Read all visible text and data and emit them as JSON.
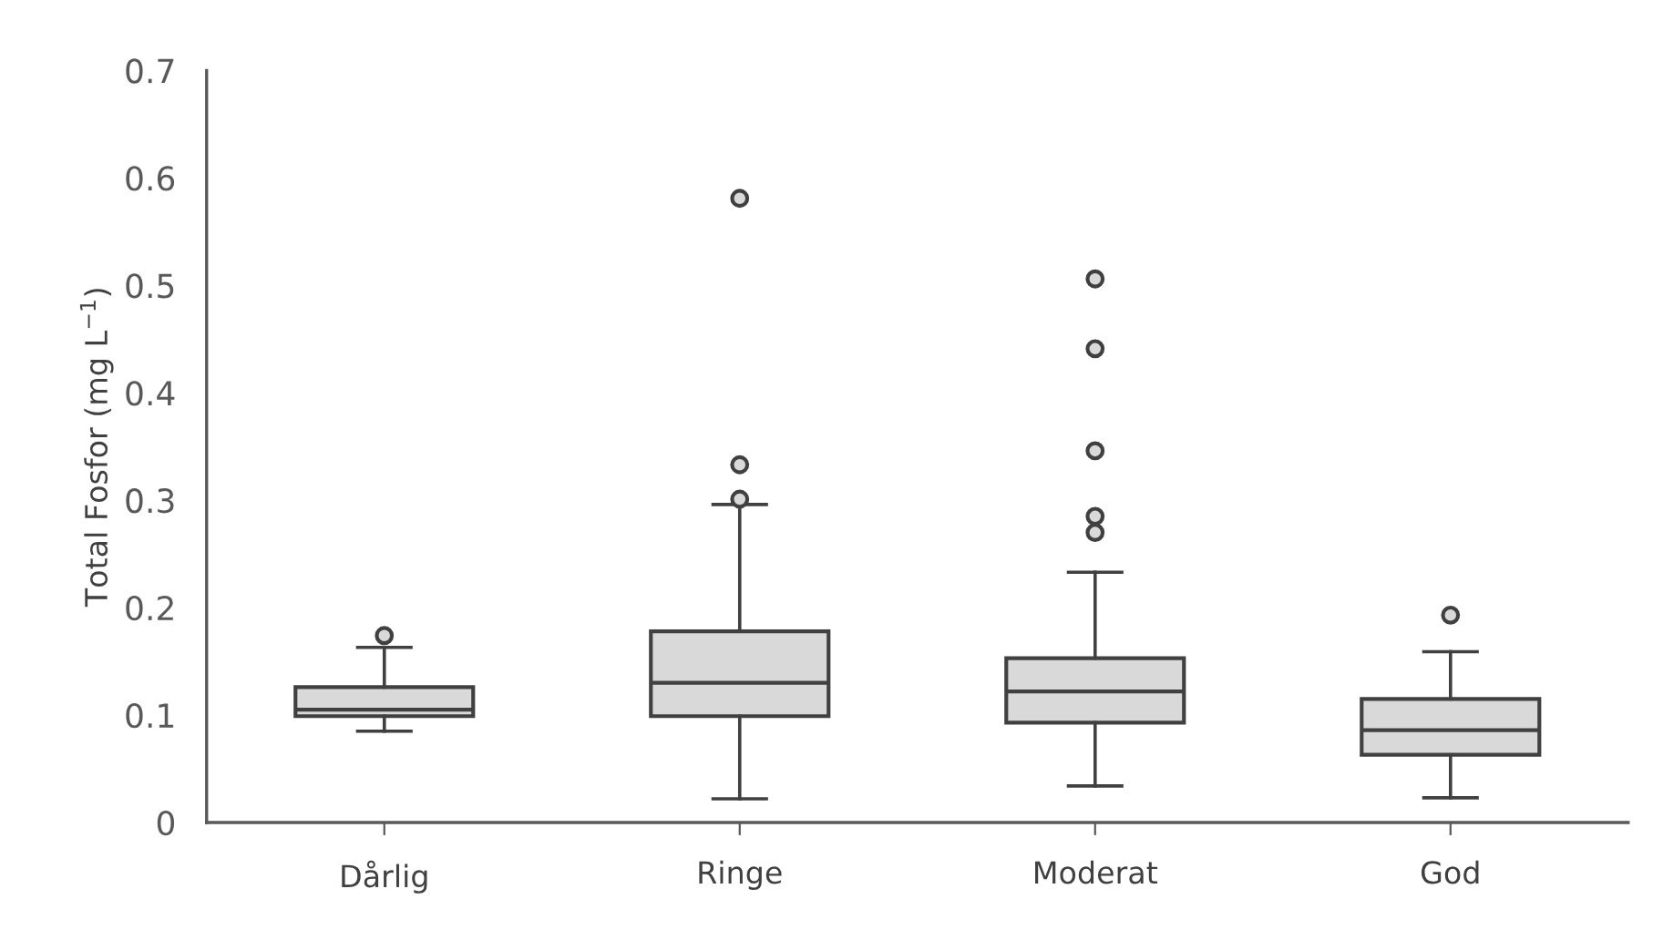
{
  "chart_data": {
    "type": "box",
    "ylabel": "Total Fosfor (mg L$^{−1}$)",
    "categories": [
      "Dårlig",
      "Ringe",
      "Moderat",
      "God"
    ],
    "color": "#d9d9d9",
    "boxes": [
      {
        "low": 0.085,
        "q1": 0.099,
        "median": 0.105,
        "q3": 0.126,
        "high": 0.163,
        "outliers": [
          0.174
        ]
      },
      {
        "low": 0.022,
        "q1": 0.099,
        "median": 0.13,
        "q3": 0.178,
        "high": 0.296,
        "outliers": [
          0.301,
          0.333,
          0.581
        ]
      },
      {
        "low": 0.034,
        "q1": 0.093,
        "median": 0.122,
        "q3": 0.153,
        "high": 0.233,
        "outliers": [
          0.27,
          0.285,
          0.346,
          0.441,
          0.506
        ]
      },
      {
        "low": 0.023,
        "q1": 0.063,
        "median": 0.086,
        "q3": 0.115,
        "high": 0.159,
        "outliers": [
          0.193
        ]
      }
    ],
    "ylim": [
      0,
      0.7
    ],
    "yticks": [
      {
        "value": 0,
        "label": "0"
      },
      0.1,
      0.2,
      0.3,
      0.4,
      0.5,
      0.6,
      0.7
    ],
    "grid": false,
    "legend": false
  }
}
